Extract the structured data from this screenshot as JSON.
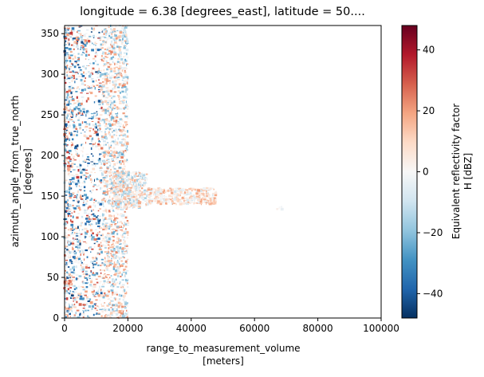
{
  "chart_data": {
    "type": "heatmap",
    "title": "longitude = 6.38 [degrees_east], latitude = 50....",
    "xlabel": "range_to_measurement_volume",
    "xlabel_unit": "[meters]",
    "ylabel": "azimuth_angle_from_true_north",
    "ylabel_unit": "[degrees]",
    "xlim": [
      0,
      100000
    ],
    "ylim": [
      0,
      360
    ],
    "xticks": [
      "0",
      "20000",
      "40000",
      "60000",
      "80000",
      "100000"
    ],
    "yticks": [
      "0",
      "50",
      "100",
      "150",
      "200",
      "250",
      "300",
      "350"
    ],
    "colorbar": {
      "label_line1": "Equivalent reflectivity factor",
      "label_line2": "H [dBZ]",
      "range": [
        -48,
        48
      ],
      "ticks": [
        "−40",
        "−20",
        "0",
        "20",
        "40"
      ],
      "colormap": "RdBu_r",
      "colors": [
        "#053061",
        "#2166ac",
        "#4393c3",
        "#92c5de",
        "#d1e5f0",
        "#f7f7f7",
        "#fddbc7",
        "#f4a582",
        "#d6604d",
        "#b2182b",
        "#67001f"
      ]
    },
    "echo_regions": [
      {
        "r_min": 0,
        "r_max": 12000,
        "az_min": 0,
        "az_max": 360,
        "dbz_min": -45,
        "dbz_max": 35
      },
      {
        "r_min": 12000,
        "r_max": 20000,
        "az_min": 0,
        "az_max": 360,
        "dbz_min": -25,
        "dbz_max": 25
      },
      {
        "r_min": 15000,
        "r_max": 26000,
        "az_min": 135,
        "az_max": 180,
        "dbz_min": -20,
        "dbz_max": 20
      },
      {
        "r_min": 26000,
        "r_max": 48000,
        "az_min": 140,
        "az_max": 160,
        "dbz_min": -10,
        "dbz_max": 20
      },
      {
        "r_min": 44000,
        "r_max": 48000,
        "az_min": 140,
        "az_max": 146,
        "dbz_min": 5,
        "dbz_max": 20
      },
      {
        "r_min": 67000,
        "r_max": 69000,
        "az_min": 133,
        "az_max": 137,
        "dbz_min": -5,
        "dbz_max": 5
      }
    ]
  }
}
